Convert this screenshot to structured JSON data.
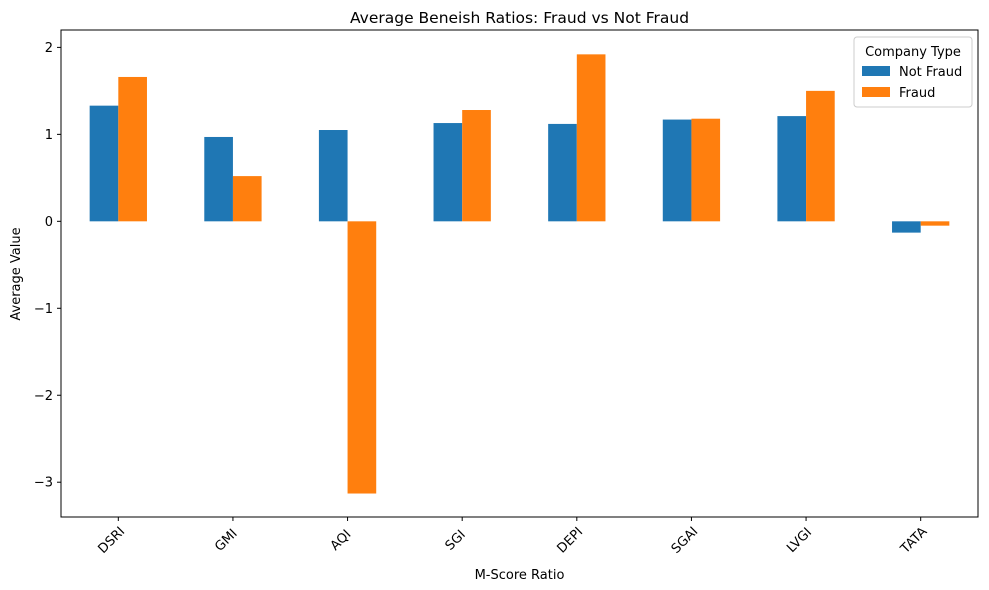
{
  "chart_data": {
    "type": "bar",
    "title": "Average Beneish Ratios: Fraud vs Not Fraud",
    "xlabel": "M-Score Ratio",
    "ylabel": "Average Value",
    "categories": [
      "DSRI",
      "GMI",
      "AQI",
      "SGI",
      "DEPI",
      "SGAI",
      "LVGI",
      "TATA"
    ],
    "series": [
      {
        "name": "Not Fraud",
        "color": "#1f77b4",
        "values": [
          1.33,
          0.97,
          1.05,
          1.13,
          1.12,
          1.17,
          1.21,
          -0.13
        ]
      },
      {
        "name": "Fraud",
        "color": "#ff7f0e",
        "values": [
          1.66,
          0.52,
          -3.13,
          1.28,
          1.92,
          1.18,
          1.5,
          -0.05
        ]
      }
    ],
    "ylim": [
      -3.4,
      2.2
    ],
    "yticks": [
      -3,
      -2,
      -1,
      0,
      1,
      2
    ],
    "ytick_labels": [
      "−3",
      "−2",
      "−1",
      "0",
      "1",
      "2"
    ],
    "legend": {
      "title": "Company Type",
      "position": "top-right"
    },
    "grid": false
  }
}
